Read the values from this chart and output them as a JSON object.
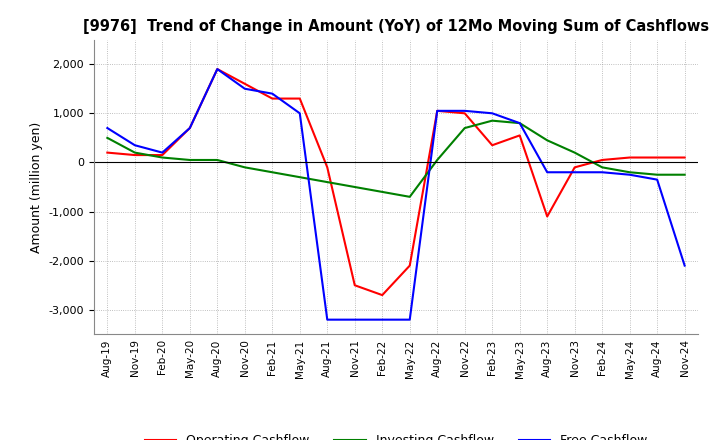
{
  "title": "[9976]  Trend of Change in Amount (YoY) of 12Mo Moving Sum of Cashflows",
  "ylabel": "Amount (million yen)",
  "x_labels": [
    "Aug-19",
    "Nov-19",
    "Feb-20",
    "May-20",
    "Aug-20",
    "Nov-20",
    "Feb-21",
    "May-21",
    "Aug-21",
    "Nov-21",
    "Feb-22",
    "May-22",
    "Aug-22",
    "Nov-22",
    "Feb-23",
    "May-23",
    "Aug-23",
    "Nov-23",
    "Feb-24",
    "May-24",
    "Aug-24",
    "Nov-24"
  ],
  "operating_cashflow": [
    200,
    150,
    150,
    700,
    1900,
    1600,
    1300,
    1300,
    -100,
    -2500,
    -2700,
    -2100,
    1050,
    1000,
    350,
    550,
    -1100,
    -100,
    50,
    100,
    100,
    100
  ],
  "investing_cashflow": [
    500,
    200,
    100,
    50,
    50,
    -100,
    -200,
    -300,
    -400,
    -500,
    -600,
    -700,
    50,
    700,
    850,
    800,
    450,
    200,
    -100,
    -200,
    -250,
    -250
  ],
  "free_cashflow": [
    700,
    350,
    200,
    700,
    1900,
    1500,
    1400,
    1000,
    -3200,
    -3200,
    -3200,
    -3200,
    1050,
    1050,
    1000,
    800,
    -200,
    -200,
    -200,
    -250,
    -350,
    -2100
  ],
  "operating_color": "#ff0000",
  "investing_color": "#008000",
  "free_color": "#0000ff",
  "ylim": [
    -3500,
    2500
  ],
  "yticks": [
    -3000,
    -2000,
    -1000,
    0,
    1000,
    2000
  ],
  "background_color": "#ffffff",
  "grid_color": "#888888"
}
